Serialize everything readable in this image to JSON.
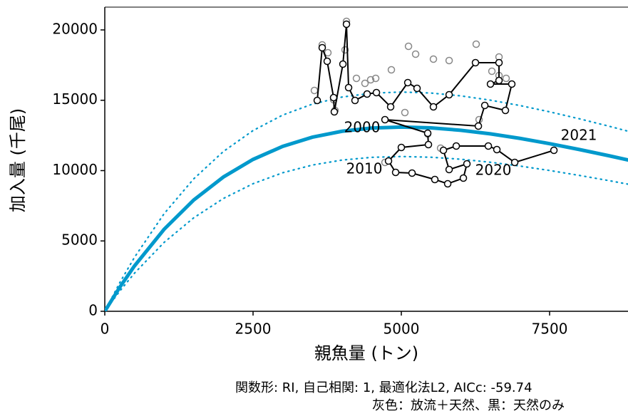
{
  "chart_data": {
    "type": "stock-recruitment",
    "xlabel": "親魚量 (トン)",
    "ylabel": "加入量 (千尾)",
    "caption": [
      "関数形: RI, 自己相関: 1, 最適化法L2, AICc: -59.74",
      "灰色：放流＋天然、黒：天然のみ"
    ],
    "xlim": [
      0,
      8822
    ],
    "ylim": [
      0,
      21620
    ],
    "xticks": [
      0,
      2500,
      5000,
      7500
    ],
    "yticks": [
      0,
      5000,
      10000,
      15000,
      20000
    ],
    "curve_color": "#0099cc",
    "curves": {
      "x": [
        0,
        250,
        500,
        1000,
        1500,
        2000,
        2500,
        3000,
        3500,
        4000,
        4500,
        5000,
        5500,
        6000,
        6500,
        7000,
        7500,
        8000,
        8500,
        9000
      ],
      "series": [
        {
          "style": "solid",
          "values": [
            0,
            1693,
            3221,
            5829,
            7912,
            9545,
            10796,
            11722,
            12375,
            12797,
            13027,
            13097,
            13036,
            12868,
            12612,
            12291,
            11914,
            11500,
            11057,
            10592
          ]
        },
        {
          "style": "dotted",
          "values": [
            0,
            2015,
            3833,
            6937,
            9415,
            11359,
            12847,
            13949,
            14726,
            15228,
            15502,
            15585,
            15513,
            15313,
            15008,
            14626,
            14178,
            13685,
            13158,
            12604
          ]
        },
        {
          "style": "dotted",
          "values": [
            0,
            1422,
            2706,
            4896,
            6646,
            8018,
            9069,
            9846,
            10395,
            10749,
            10943,
            11001,
            10950,
            10809,
            10594,
            10324,
            10008,
            9660,
            9288,
            8897
          ]
        }
      ]
    },
    "gray_points": {
      "color": "#888888",
      "x": [
        3534,
        3666,
        3762,
        3858,
        4051,
        4075,
        4243,
        4387,
        4483,
        4568,
        4832,
        5121,
        5241,
        5541,
        5806,
        6262,
        6647,
        6527,
        6767,
        6311,
        5060,
        4724,
        5662,
        5445,
        3882,
        6647
      ],
      "values": [
        15695,
        18936,
        18379,
        15037,
        18581,
        20607,
        16556,
        16202,
        16455,
        16556,
        17164,
        18834,
        18278,
        17923,
        17822,
        18986,
        18075,
        17062,
        16556,
        13620,
        14126,
        10582,
        11594,
        12607,
        14278,
        16758
      ]
    },
    "black_points": {
      "color": "#000000",
      "x": [
        3582,
        3666,
        3750,
        3858,
        3870,
        4015,
        4075,
        4111,
        4219,
        4423,
        4580,
        4820,
        5109,
        5265,
        5541,
        5806,
        6250,
        6647,
        6647,
        6503,
        6863,
        6755,
        6407,
        6299,
        4724,
        5445,
        5457,
        5000,
        4784,
        4904,
        5181,
        5565,
        5782,
        6046,
        6106,
        5806,
        5710,
        5926,
        6467,
        6611,
        6912,
        7573
      ],
      "values": [
        14986,
        18733,
        17771,
        15189,
        14176,
        17569,
        20404,
        15898,
        14986,
        15442,
        15543,
        14531,
        16252,
        15847,
        14531,
        15391,
        17670,
        17670,
        16404,
        16151,
        16151,
        14278,
        14632,
        13164,
        13620,
        12658,
        11847,
        11645,
        10683,
        9873,
        9822,
        9367,
        9063,
        9468,
        10480,
        10075,
        11442,
        11746,
        11746,
        11493,
        10582,
        11442
      ],
      "point_labels": [
        null,
        null,
        null,
        null,
        null,
        null,
        null,
        null,
        null,
        null,
        null,
        null,
        null,
        null,
        null,
        null,
        null,
        null,
        null,
        null,
        null,
        null,
        null,
        null,
        "2000",
        null,
        null,
        null,
        "2010",
        null,
        null,
        null,
        null,
        null,
        null,
        null,
        null,
        null,
        null,
        null,
        "2020",
        "2021"
      ]
    }
  }
}
